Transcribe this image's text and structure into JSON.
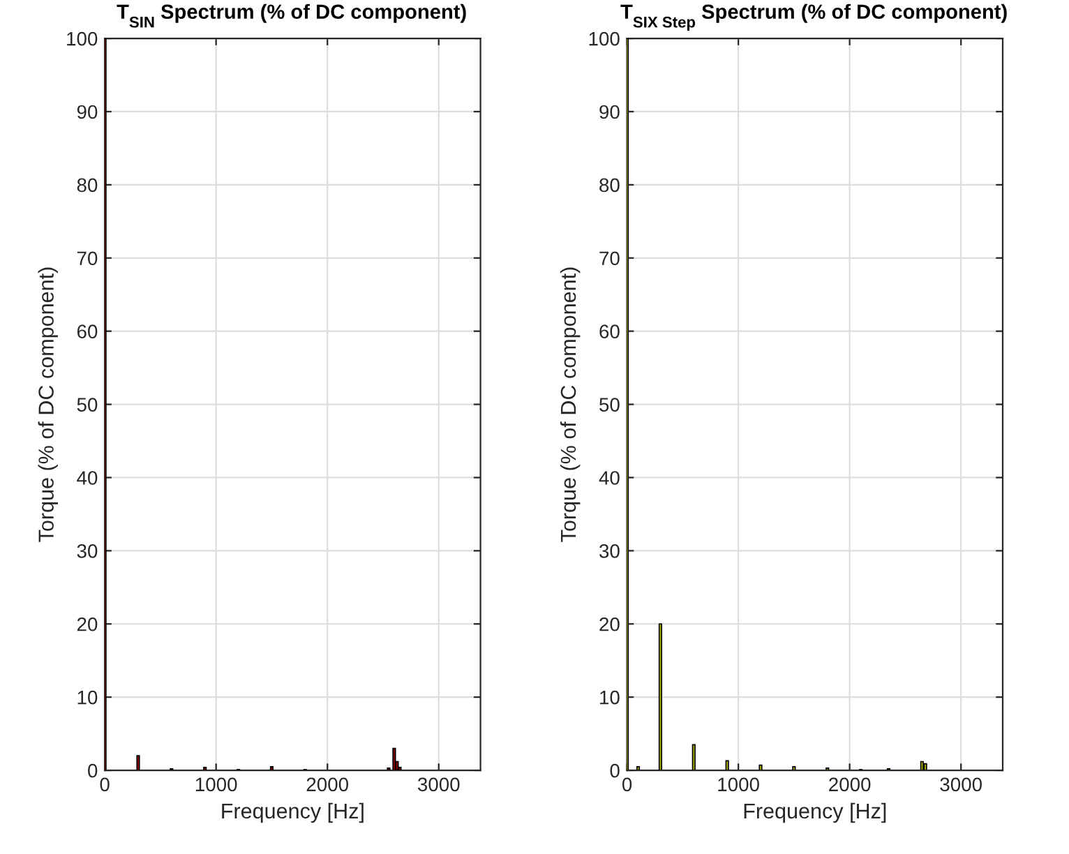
{
  "chart_data": [
    {
      "type": "bar",
      "title": "T$_{SIN}$ Spectrum (% of DC component)",
      "xlabel": "Frequency [Hz]",
      "ylabel": "Torque (% of DC component)",
      "x": [
        0,
        300,
        600,
        900,
        1200,
        1500,
        1800,
        2550,
        2600,
        2625,
        2650
      ],
      "series": [
        {
          "color": "#8b0000",
          "values": [
            100,
            2,
            0.2,
            0.4,
            0.1,
            0.5,
            0.1,
            0.3,
            3,
            1.2,
            0.4
          ]
        }
      ],
      "xlim": [
        0,
        3375
      ],
      "xticks": [
        0,
        1000,
        2000,
        3000
      ],
      "ylim": [
        0,
        100
      ],
      "yticks": [
        0,
        10,
        20,
        30,
        40,
        50,
        60,
        70,
        80,
        90,
        100
      ],
      "grid": true
    },
    {
      "type": "bar",
      "title": "T$_{SIX Step}$ Spectrum (% of DC component)",
      "xlabel": "Frequency [Hz]",
      "ylabel": "Torque (% of DC component)",
      "x": [
        0,
        100,
        300,
        600,
        900,
        1200,
        1500,
        1800,
        2100,
        2350,
        2650,
        2680
      ],
      "series": [
        {
          "color": "#b3b300",
          "values": [
            100,
            0.5,
            20,
            3.5,
            1.3,
            0.7,
            0.5,
            0.3,
            0.1,
            0.2,
            1.2,
            0.9
          ]
        }
      ],
      "xlim": [
        0,
        3375
      ],
      "xticks": [
        0,
        1000,
        2000,
        3000
      ],
      "ylim": [
        0,
        100
      ],
      "yticks": [
        0,
        10,
        20,
        30,
        40,
        50,
        60,
        70,
        80,
        90,
        100
      ],
      "grid": true
    }
  ]
}
